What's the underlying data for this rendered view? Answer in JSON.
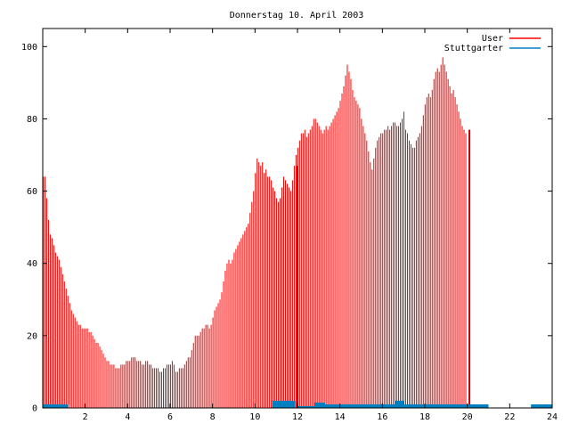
{
  "chart_data": {
    "type": "bar",
    "title": "Donnerstag 10. April 2003",
    "xlabel": "",
    "ylabel": "",
    "xlim": [
      0,
      24
    ],
    "ylim": [
      0,
      105
    ],
    "xticks": [
      2,
      4,
      6,
      8,
      10,
      12,
      14,
      16,
      18,
      20,
      22,
      24
    ],
    "yticks": [
      0,
      20,
      40,
      60,
      80,
      100
    ],
    "grid": false,
    "legend_position": "top-right",
    "series": [
      {
        "name": "User",
        "color": "#ff0000",
        "step_hours": 0.0833,
        "values": [
          64,
          64,
          58,
          52,
          48,
          47,
          45,
          43,
          42,
          41,
          39,
          37,
          35,
          33,
          31,
          29,
          27,
          26,
          25,
          24,
          23,
          23,
          22,
          22,
          22,
          22,
          21,
          21,
          20,
          19,
          18,
          18,
          17,
          16,
          15,
          14,
          13,
          13,
          12,
          12,
          12,
          11,
          11,
          11,
          12,
          12,
          12,
          13,
          13,
          13,
          14,
          14,
          14,
          13,
          13,
          13,
          12,
          12,
          13,
          13,
          12,
          12,
          11,
          11,
          11,
          11,
          10,
          10,
          11,
          11,
          12,
          12,
          12,
          13,
          12,
          10,
          10,
          11,
          11,
          11,
          12,
          13,
          14,
          14,
          16,
          18,
          20,
          20,
          20,
          21,
          22,
          22,
          23,
          23,
          22,
          23,
          25,
          27,
          28,
          29,
          30,
          32,
          35,
          38,
          40,
          41,
          40,
          41,
          43,
          44,
          45,
          46,
          47,
          48,
          49,
          50,
          51,
          54,
          57,
          60,
          65,
          69,
          68,
          67,
          68,
          65,
          66,
          64,
          64,
          63,
          61,
          60,
          58,
          57,
          58,
          61,
          64,
          63,
          62,
          61,
          60,
          63,
          67,
          70,
          72,
          74,
          76,
          76,
          77,
          75,
          76,
          77,
          78,
          80,
          80,
          79,
          78,
          77,
          76,
          77,
          78,
          77,
          78,
          79,
          80,
          81,
          82,
          83,
          85,
          87,
          89,
          92,
          95,
          93,
          91,
          88,
          86,
          85,
          84,
          83,
          80,
          78,
          76,
          74,
          71,
          68,
          66,
          69,
          72,
          74,
          75,
          76,
          76,
          77,
          77,
          78,
          77,
          78,
          79,
          79,
          78,
          78,
          79,
          80,
          82,
          77,
          76,
          74,
          73,
          72,
          72,
          74,
          75,
          76,
          78,
          81,
          84,
          86,
          87,
          86,
          88,
          91,
          93,
          94,
          93,
          95,
          97,
          95,
          93,
          91,
          89,
          87,
          88,
          86,
          84,
          82,
          80,
          78,
          77,
          76
        ],
        "overlay_events": [
          {
            "x": 12.0,
            "value": 67
          },
          {
            "x": 20.1,
            "value": 77
          }
        ]
      },
      {
        "name": "Stuttgarter",
        "color": "#0080c0",
        "segments": [
          {
            "x_start": 0.0,
            "x_end": 1.2,
            "value": 1
          },
          {
            "x_start": 10.8,
            "x_end": 11.9,
            "value": 2
          },
          {
            "x_start": 12.0,
            "x_end": 12.8,
            "value": 0.5
          },
          {
            "x_start": 12.8,
            "x_end": 13.3,
            "value": 1.5
          },
          {
            "x_start": 13.3,
            "x_end": 16.6,
            "value": 1
          },
          {
            "x_start": 16.6,
            "x_end": 17.0,
            "value": 2
          },
          {
            "x_start": 17.0,
            "x_end": 20.0,
            "value": 1
          },
          {
            "x_start": 20.0,
            "x_end": 21.0,
            "value": 1
          },
          {
            "x_start": 23.0,
            "x_end": 24.0,
            "value": 1
          }
        ]
      }
    ]
  }
}
